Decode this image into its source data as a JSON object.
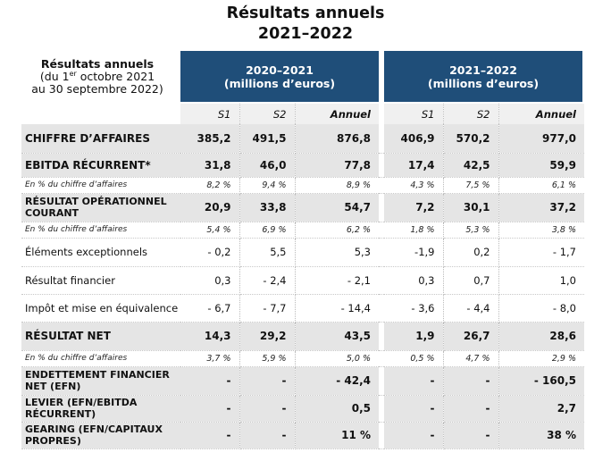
{
  "title": {
    "line1": "Résultats annuels",
    "line2": "2021–2022"
  },
  "header": {
    "label_line1": "Résultats annuels",
    "label_line2_a": "(du 1",
    "label_line2_sup": "er",
    "label_line2_b": " octobre 2021",
    "label_line3": "au 30 septembre 2022)",
    "period1": {
      "line1": "2020–2021",
      "line2": "(millions d’euros)"
    },
    "period2": {
      "line1": "2021–2022",
      "line2": "(millions d’euros)"
    }
  },
  "columns": [
    "S1",
    "S2",
    "Annuel",
    "S1",
    "S2",
    "Annuel"
  ],
  "rows": [
    {
      "label": "CHIFFRE D’AFFAIRES",
      "values": [
        "385,2",
        "491,5",
        "876,8",
        "406,9",
        "570,2",
        "977,0"
      ]
    },
    {
      "label": "EBITDA RÉCURRENT*",
      "values": [
        "31,8",
        "46,0",
        "77,8",
        "17,4",
        "42,5",
        "59,9"
      ]
    },
    {
      "label": "En % du chiffre d’affaires",
      "values": [
        "8,2 %",
        "9,4 %",
        "8,9 %",
        "4,3 %",
        "7,5 %",
        "6,1 %"
      ]
    },
    {
      "label": "RÉSULTAT OPÉRATIONNEL COURANT",
      "values": [
        "20,9",
        "33,8",
        "54,7",
        "7,2",
        "30,1",
        "37,2"
      ]
    },
    {
      "label": "En % du chiffre d’affaires",
      "values": [
        "5,4 %",
        "6,9 %",
        "6,2 %",
        "1,8 %",
        "5,3 %",
        "3,8 %"
      ]
    },
    {
      "label": "Éléments exceptionnels",
      "values": [
        "- 0,2",
        "5,5",
        "5,3",
        "-1,9",
        "0,2",
        "- 1,7"
      ]
    },
    {
      "label": "Résultat financier",
      "values": [
        "0,3",
        "- 2,4",
        "- 2,1",
        "0,3",
        "0,7",
        "1,0"
      ]
    },
    {
      "label": "Impôt et mise en équivalence",
      "values": [
        "- 6,7",
        "- 7,7",
        "- 14,4",
        "- 3,6",
        "- 4,4",
        "- 8,0"
      ]
    },
    {
      "label": "RÉSULTAT NET",
      "values": [
        "14,3",
        "29,2",
        "43,5",
        "1,9",
        "26,7",
        "28,6"
      ]
    },
    {
      "label": "En % du chiffre d’affaires",
      "values": [
        "3,7 %",
        "5,9 %",
        "5,0 %",
        "0,5 %",
        "4,7 %",
        "2,9 %"
      ]
    },
    {
      "label": "ENDETTEMENT FINANCIER NET (EFN)",
      "values": [
        "-",
        "-",
        "- 42,4",
        "-",
        "-",
        "- 160,5"
      ]
    },
    {
      "label": "LEVIER (EFN/EBITDA RÉCURRENT)",
      "values": [
        "-",
        "-",
        "0,5",
        "-",
        "-",
        "2,7"
      ]
    },
    {
      "label": "GEARING (EFN/CAPITAUX PROPRES)",
      "values": [
        "-",
        "-",
        "11 %",
        "-",
        "-",
        "38 %"
      ]
    }
  ]
}
